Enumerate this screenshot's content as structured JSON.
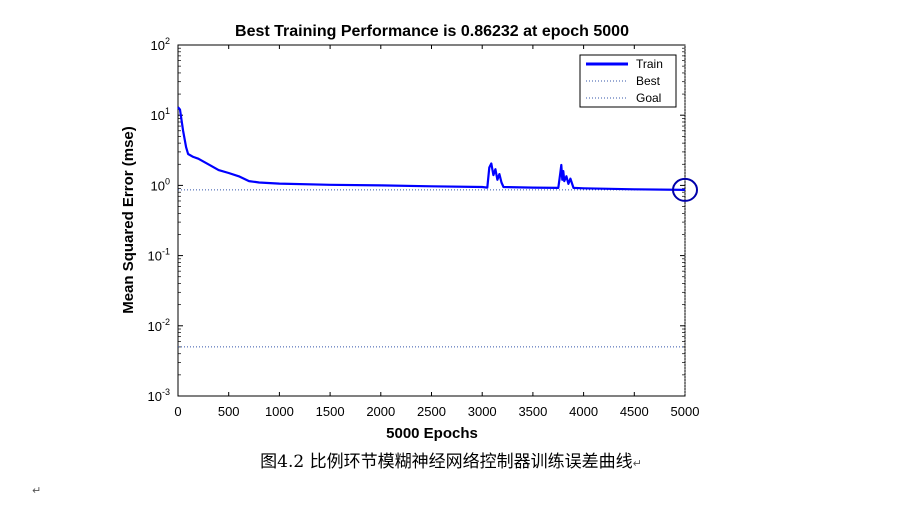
{
  "chart_data": {
    "type": "line",
    "title": "Best Training Performance is 0.86232 at epoch 5000",
    "xlabel": "5000 Epochs",
    "ylabel": "Mean Squared Error  (mse)",
    "xlim": [
      0,
      5000
    ],
    "ylim_log10": [
      -3,
      2
    ],
    "x_ticks": [
      "0",
      "500",
      "1000",
      "1500",
      "2000",
      "2500",
      "3000",
      "3500",
      "4000",
      "4500",
      "5000"
    ],
    "y_ticks": [
      {
        "base": "10",
        "exp": "2"
      },
      {
        "base": "10",
        "exp": "1"
      },
      {
        "base": "10",
        "exp": "0"
      },
      {
        "base": "10",
        "exp": "-1"
      },
      {
        "base": "10",
        "exp": "-2"
      },
      {
        "base": "10",
        "exp": "-3"
      }
    ],
    "scale_y": "log",
    "legend": {
      "position": "top-right",
      "entries": [
        "Train",
        "Best",
        "Goal"
      ]
    },
    "series": [
      {
        "name": "Train",
        "color": "#0000ff",
        "style": "solid",
        "x": [
          0,
          20,
          50,
          80,
          100,
          150,
          200,
          300,
          400,
          500,
          600,
          700,
          800,
          1000,
          1500,
          2000,
          2500,
          3000,
          3050,
          3070,
          3090,
          3110,
          3130,
          3150,
          3170,
          3190,
          3210,
          3500,
          3750,
          3770,
          3780,
          3790,
          3800,
          3810,
          3830,
          3850,
          3870,
          3900,
          4000,
          4500,
          5000
        ],
        "y": [
          13,
          12,
          6,
          3.5,
          2.8,
          2.55,
          2.4,
          2.0,
          1.65,
          1.5,
          1.35,
          1.15,
          1.1,
          1.06,
          1.02,
          1.0,
          0.97,
          0.95,
          0.93,
          1.8,
          2.05,
          1.4,
          1.7,
          1.2,
          1.45,
          1.1,
          0.95,
          0.93,
          0.92,
          1.5,
          1.95,
          1.2,
          1.6,
          1.15,
          1.35,
          1.05,
          1.25,
          0.92,
          0.91,
          0.88,
          0.86232
        ]
      },
      {
        "name": "Best",
        "color": "#3355aa",
        "style": "dotted",
        "y_constant": 0.86232
      },
      {
        "name": "Goal",
        "color": "#3355aa",
        "style": "dotted",
        "y_constant": 0.005
      }
    ],
    "best_marker": {
      "epoch": 5000,
      "value": 0.86232,
      "color": "#0000aa"
    },
    "vertical_marker": {
      "epoch": 5000,
      "style": "dotted"
    }
  },
  "caption": {
    "label": "图4.2 比例环节模糊神经网络控制器训练误差曲线",
    "mark": "↵"
  },
  "paragraph_mark": "↵"
}
